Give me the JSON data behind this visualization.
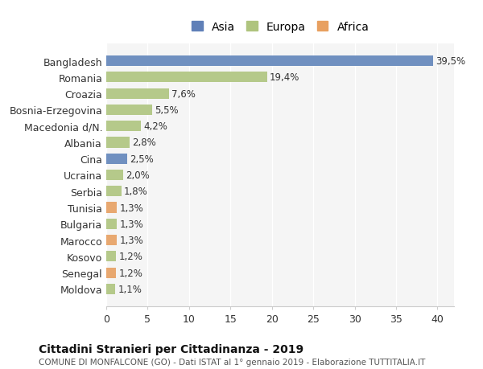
{
  "countries": [
    "Bangladesh",
    "Romania",
    "Croazia",
    "Bosnia-Erzegovina",
    "Macedonia d/N.",
    "Albania",
    "Cina",
    "Ucraina",
    "Serbia",
    "Tunisia",
    "Bulgaria",
    "Marocco",
    "Kosovo",
    "Senegal",
    "Moldova"
  ],
  "values": [
    39.5,
    19.4,
    7.6,
    5.5,
    4.2,
    2.8,
    2.5,
    2.0,
    1.8,
    1.3,
    1.3,
    1.3,
    1.2,
    1.2,
    1.1
  ],
  "labels": [
    "39,5%",
    "19,4%",
    "7,6%",
    "5,5%",
    "4,2%",
    "2,8%",
    "2,5%",
    "2,0%",
    "1,8%",
    "1,3%",
    "1,3%",
    "1,3%",
    "1,2%",
    "1,2%",
    "1,1%"
  ],
  "continents": [
    "Asia",
    "Europa",
    "Europa",
    "Europa",
    "Europa",
    "Europa",
    "Asia",
    "Europa",
    "Europa",
    "Africa",
    "Europa",
    "Africa",
    "Europa",
    "Africa",
    "Europa"
  ],
  "colors": {
    "Asia": "#7090c0",
    "Europa": "#b5c98a",
    "Africa": "#e8a870"
  },
  "legend_colors": {
    "Asia": "#6080b8",
    "Europa": "#afc47e",
    "Africa": "#e8a060"
  },
  "title": "Cittadini Stranieri per Cittadinanza - 2019",
  "subtitle": "COMUNE DI MONFALCONE (GO) - Dati ISTAT al 1° gennaio 2019 - Elaborazione TUTTITALIA.IT",
  "xlim": [
    0,
    42
  ],
  "background_color": "#ffffff",
  "plot_bg_color": "#f5f5f5"
}
